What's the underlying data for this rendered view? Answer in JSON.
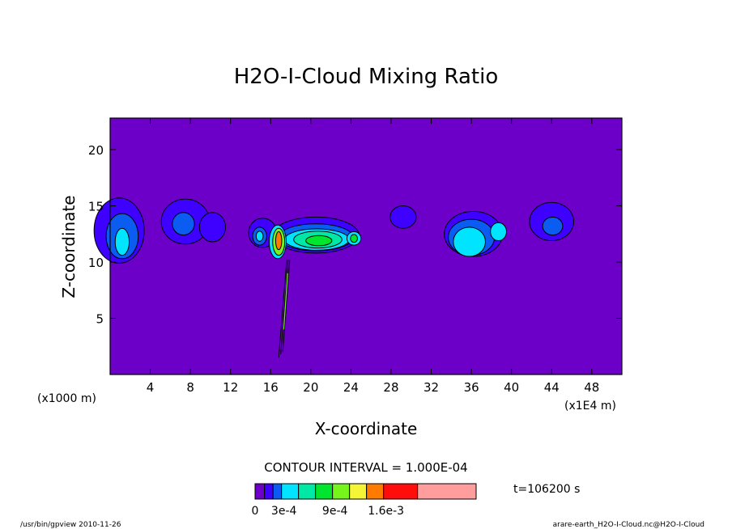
{
  "chart_data": {
    "type": "heatmap",
    "title": "H2O-I-Cloud Mixing Ratio",
    "xlabel": "X-coordinate",
    "ylabel": "Z-coordinate",
    "x_unit_left": "(x1000 m)",
    "x_unit_right": "(x1E4 m)",
    "x_ticks": [
      "4",
      "8",
      "12",
      "16",
      "20",
      "24",
      "28",
      "32",
      "36",
      "40",
      "44",
      "48"
    ],
    "x_tick_values": [
      4,
      8,
      12,
      16,
      20,
      24,
      28,
      32,
      36,
      40,
      44,
      48
    ],
    "y_ticks": [
      "5",
      "10",
      "15",
      "20"
    ],
    "y_tick_values": [
      5,
      10,
      15,
      20
    ],
    "xlim": [
      0,
      51
    ],
    "ylim": [
      0,
      22.8
    ],
    "contour_interval_label": "CONTOUR INTERVAL = 1.000E-04",
    "time_label": "t=106200 s",
    "colorbar_labels": [
      "0",
      "3e-4",
      "9e-4",
      "1.6e-3"
    ],
    "colorbar_label_values": [
      0,
      0.0003,
      0.0009,
      0.0016
    ],
    "colorbar_colors": [
      "#6d00c8",
      "#3e00ff",
      "#0a5df0",
      "#00e4ff",
      "#00e8a5",
      "#00e52d",
      "#75f51b",
      "#f6f535",
      "#ff7b00",
      "#ff0c0c",
      "#ff9c9c"
    ],
    "levels": [
      0,
      0.0001,
      0.0002,
      0.0003,
      0.0004,
      0.0005,
      0.0007,
      0.0009,
      0.0011,
      0.0013,
      0.0016,
      0.0022
    ],
    "cells": [
      {
        "x": 0.9,
        "z": 12.8,
        "rx": 2.5,
        "rz": 2.9,
        "level": 1
      },
      {
        "x": 1.2,
        "z": 12.3,
        "rx": 1.6,
        "rz": 2.0,
        "level": 2
      },
      {
        "x": 1.2,
        "z": 11.8,
        "rx": 0.7,
        "rz": 1.2,
        "level": 3
      },
      {
        "x": 7.5,
        "z": 13.6,
        "rx": 2.4,
        "rz": 2.0,
        "level": 1
      },
      {
        "x": 10.2,
        "z": 13.1,
        "rx": 1.3,
        "rz": 1.3,
        "level": 1
      },
      {
        "x": 7.3,
        "z": 13.4,
        "rx": 1.1,
        "rz": 1.0,
        "level": 2
      },
      {
        "x": 15.2,
        "z": 12.6,
        "rx": 1.4,
        "rz": 1.3,
        "level": 1
      },
      {
        "x": 14.9,
        "z": 12.3,
        "rx": 0.7,
        "rz": 0.8,
        "level": 2
      },
      {
        "x": 14.9,
        "z": 12.3,
        "rx": 0.35,
        "rz": 0.45,
        "level": 3
      },
      {
        "x": 20.5,
        "z": 12.4,
        "rx": 4.3,
        "rz": 1.6,
        "level": 1
      },
      {
        "x": 20.5,
        "z": 12.2,
        "rx": 3.7,
        "rz": 1.2,
        "level": 2
      },
      {
        "x": 20.6,
        "z": 12.0,
        "rx": 3.2,
        "rz": 0.95,
        "level": 3
      },
      {
        "x": 20.7,
        "z": 12.0,
        "rx": 2.4,
        "rz": 0.75,
        "level": 4
      },
      {
        "x": 20.8,
        "z": 11.9,
        "rx": 1.3,
        "rz": 0.45,
        "level": 5
      },
      {
        "x": 24.3,
        "z": 12.1,
        "rx": 0.7,
        "rz": 0.6,
        "level": 3
      },
      {
        "x": 24.3,
        "z": 12.1,
        "rx": 0.35,
        "rz": 0.35,
        "level": 5
      },
      {
        "x": 29.2,
        "z": 14.0,
        "rx": 1.3,
        "rz": 1.0,
        "level": 1
      },
      {
        "x": 36.2,
        "z": 12.5,
        "rx": 2.9,
        "rz": 2.0,
        "level": 1
      },
      {
        "x": 36.0,
        "z": 12.2,
        "rx": 2.3,
        "rz": 1.6,
        "level": 2
      },
      {
        "x": 35.8,
        "z": 11.8,
        "rx": 1.6,
        "rz": 1.3,
        "level": 3
      },
      {
        "x": 38.7,
        "z": 12.7,
        "rx": 0.8,
        "rz": 0.8,
        "level": 3
      },
      {
        "x": 44.0,
        "z": 13.6,
        "rx": 2.2,
        "rz": 1.7,
        "level": 1
      },
      {
        "x": 44.1,
        "z": 13.2,
        "rx": 1.0,
        "rz": 0.8,
        "level": 2
      },
      {
        "x": 16.7,
        "z": 11.8,
        "rx": 0.85,
        "rz": 1.5,
        "level": 3
      },
      {
        "x": 16.8,
        "z": 11.8,
        "rx": 0.6,
        "rz": 1.2,
        "level": 6
      },
      {
        "x": 16.8,
        "z": 11.9,
        "rx": 0.3,
        "rz": 0.8,
        "level": 8
      }
    ],
    "streaks": [
      {
        "x0": 17.6,
        "z0": 10.2,
        "x1": 16.8,
        "z1": 1.5
      },
      {
        "x0": 17.9,
        "z0": 10.2,
        "x1": 17.2,
        "z1": 2.0
      },
      {
        "x0": 17.75,
        "z0": 10.2,
        "x1": 17.0,
        "z1": 1.8
      }
    ]
  },
  "footer": {
    "left": "/usr/bin/gpview  2010-11-26",
    "right": "arare-earth_H2O-I-Cloud.nc@H2O-I-Cloud"
  }
}
